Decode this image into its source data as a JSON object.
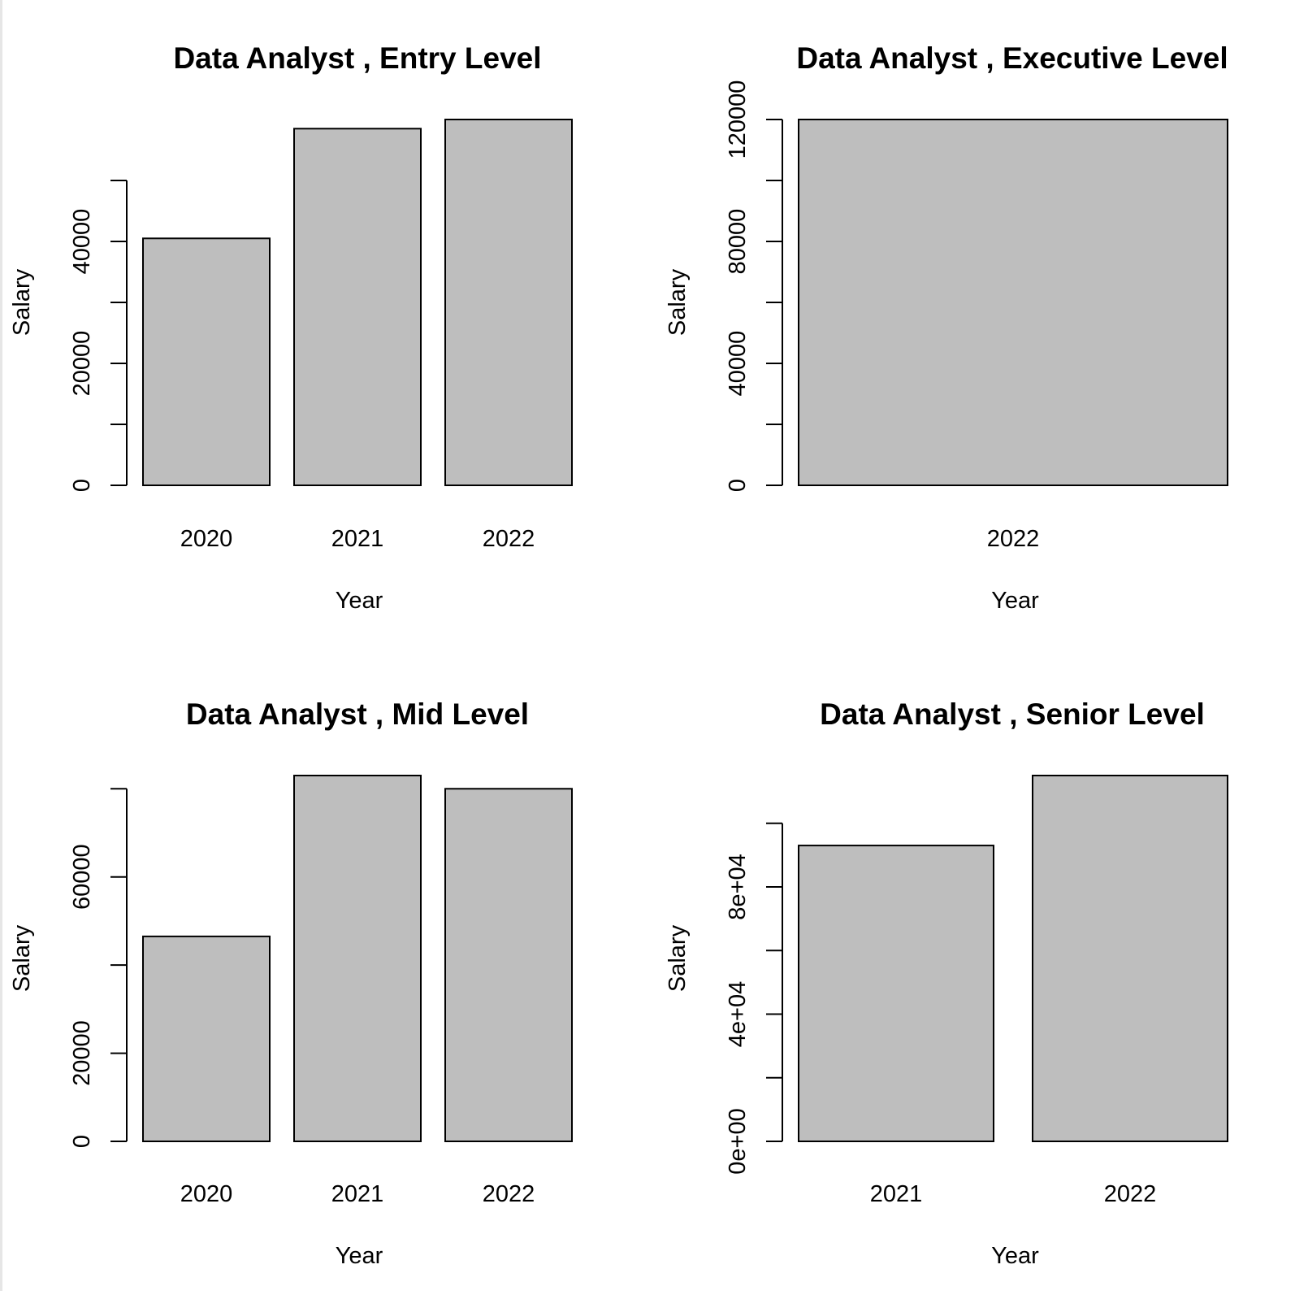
{
  "chart_data": [
    {
      "type": "bar",
      "title": "Data Analyst ,  Entry Level",
      "xlabel": "Year",
      "ylabel": "Salary",
      "categories": [
        "2020",
        "2021",
        "2022"
      ],
      "values": [
        40500,
        58500,
        60000
      ],
      "ylim": [
        0,
        60000
      ],
      "yticks": [
        "0",
        "20000",
        "40000"
      ],
      "yticks_unlabeled": [
        10000,
        30000,
        50000
      ],
      "bar_color": "#bebebe"
    },
    {
      "type": "bar",
      "title": "Data Analyst ,  Executive Level",
      "xlabel": "Year",
      "ylabel": "Salary",
      "categories": [
        "2022"
      ],
      "values": [
        120000
      ],
      "ylim": [
        0,
        120000
      ],
      "yticks": [
        "0",
        "40000",
        "80000",
        "120000"
      ],
      "yticks_unlabeled": [
        20000,
        60000,
        100000
      ],
      "bar_color": "#bebebe"
    },
    {
      "type": "bar",
      "title": "Data Analyst ,  Mid Level",
      "xlabel": "Year",
      "ylabel": "Salary",
      "categories": [
        "2020",
        "2021",
        "2022"
      ],
      "values": [
        46500,
        83000,
        80000
      ],
      "ylim": [
        0,
        83000
      ],
      "yticks": [
        "0",
        "20000",
        "60000"
      ],
      "yticks_unlabeled": [
        40000,
        80000
      ],
      "bar_color": "#bebebe"
    },
    {
      "type": "bar",
      "title": "Data Analyst ,  Senior Level",
      "xlabel": "Year",
      "ylabel": "Salary",
      "categories": [
        "2021",
        "2022"
      ],
      "values": [
        93000,
        115000
      ],
      "ylim": [
        0,
        115000
      ],
      "yticks": [
        "0e+00",
        "4e+04",
        "8e+04"
      ],
      "yticks_unlabeled": [
        20000,
        60000,
        100000
      ],
      "bar_color": "#bebebe"
    }
  ]
}
